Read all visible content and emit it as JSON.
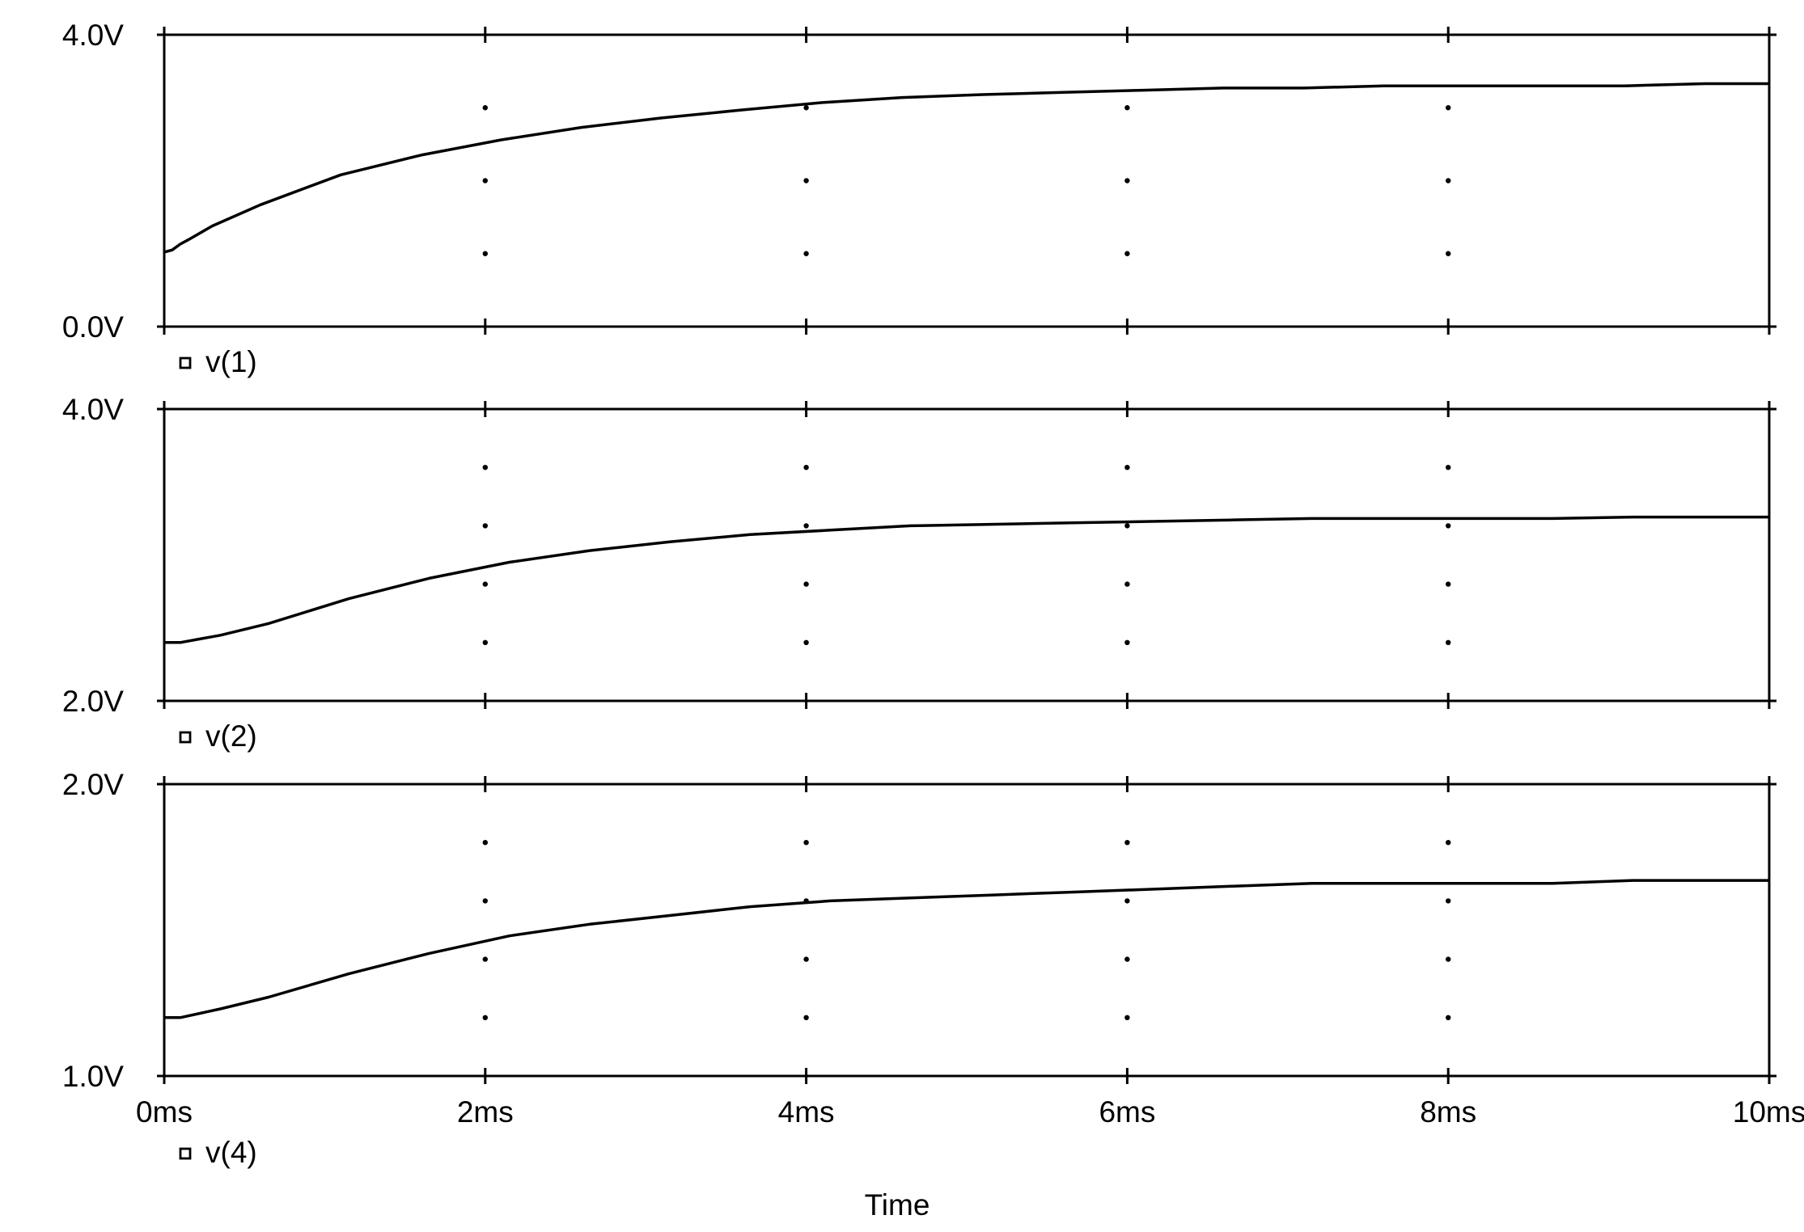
{
  "chart_data": [
    {
      "type": "line",
      "x_unit": "ms",
      "y_unit": "V",
      "xlim": [
        0,
        10
      ],
      "ylim": [
        0,
        4
      ],
      "ytick_labels": [
        "4.0V",
        "0.0V"
      ],
      "grid": "dotted",
      "grid_y": [
        1,
        2,
        3
      ],
      "series": [
        {
          "name": "v(1)",
          "x": [
            0,
            0.05,
            0.1,
            0.15,
            0.3,
            0.6,
            1.1,
            1.6,
            2.1,
            2.6,
            3.1,
            3.6,
            4.1,
            4.6,
            5.1,
            5.6,
            6.1,
            6.6,
            7.1,
            7.6,
            8.1,
            8.6,
            9.1,
            9.6,
            10
          ],
          "y": [
            1.02,
            1.05,
            1.13,
            1.19,
            1.38,
            1.67,
            2.08,
            2.35,
            2.56,
            2.73,
            2.86,
            2.97,
            3.07,
            3.14,
            3.18,
            3.21,
            3.24,
            3.27,
            3.27,
            3.3,
            3.3,
            3.3,
            3.3,
            3.33,
            3.33
          ]
        }
      ]
    },
    {
      "type": "line",
      "x_unit": "ms",
      "y_unit": "V",
      "xlim": [
        0,
        10
      ],
      "ylim": [
        2,
        4
      ],
      "ytick_labels": [
        "4.0V",
        "2.0V"
      ],
      "grid": "dotted",
      "grid_y": [
        2.4,
        2.8,
        3.2,
        3.6
      ],
      "series": [
        {
          "name": "v(2)",
          "x": [
            0,
            0.1,
            0.35,
            0.65,
            1.15,
            1.65,
            2.15,
            2.65,
            3.15,
            3.65,
            4.15,
            4.65,
            5.15,
            5.65,
            6.15,
            6.65,
            7.15,
            7.65,
            8.15,
            8.65,
            9.15,
            9.65,
            10
          ],
          "y": [
            2.4,
            2.4,
            2.45,
            2.53,
            2.7,
            2.84,
            2.95,
            3.03,
            3.09,
            3.14,
            3.17,
            3.2,
            3.21,
            3.22,
            3.23,
            3.24,
            3.25,
            3.25,
            3.25,
            3.25,
            3.26,
            3.26,
            3.26
          ]
        }
      ]
    },
    {
      "type": "line",
      "x_unit": "ms",
      "y_unit": "V",
      "xlim": [
        0,
        10
      ],
      "ylim": [
        1,
        2
      ],
      "ytick_labels": [
        "2.0V",
        "1.0V"
      ],
      "grid": "dotted",
      "grid_y": [
        1.2,
        1.4,
        1.6,
        1.8
      ],
      "series": [
        {
          "name": "v(4)",
          "x": [
            0,
            0.1,
            0.35,
            0.65,
            1.15,
            1.65,
            2.15,
            2.65,
            3.15,
            3.65,
            4.15,
            4.65,
            5.15,
            5.65,
            6.15,
            6.65,
            7.15,
            7.65,
            8.15,
            8.65,
            9.15,
            9.65,
            10
          ],
          "y": [
            1.2,
            1.2,
            1.23,
            1.27,
            1.35,
            1.42,
            1.48,
            1.52,
            1.55,
            1.58,
            1.6,
            1.61,
            1.62,
            1.63,
            1.64,
            1.65,
            1.66,
            1.66,
            1.66,
            1.66,
            1.67,
            1.67,
            1.67
          ]
        }
      ]
    }
  ],
  "x_axis": {
    "ticks": [
      0,
      2,
      4,
      6,
      8,
      10
    ],
    "tick_labels": [
      "0ms",
      "2ms",
      "4ms",
      "6ms",
      "8ms",
      "10ms"
    ],
    "label": "Time"
  },
  "colors": {
    "trace": "#000000",
    "axes": "#000000",
    "background": "#ffffff"
  },
  "icons": {
    "legend_marker": "hollow-square-icon"
  }
}
